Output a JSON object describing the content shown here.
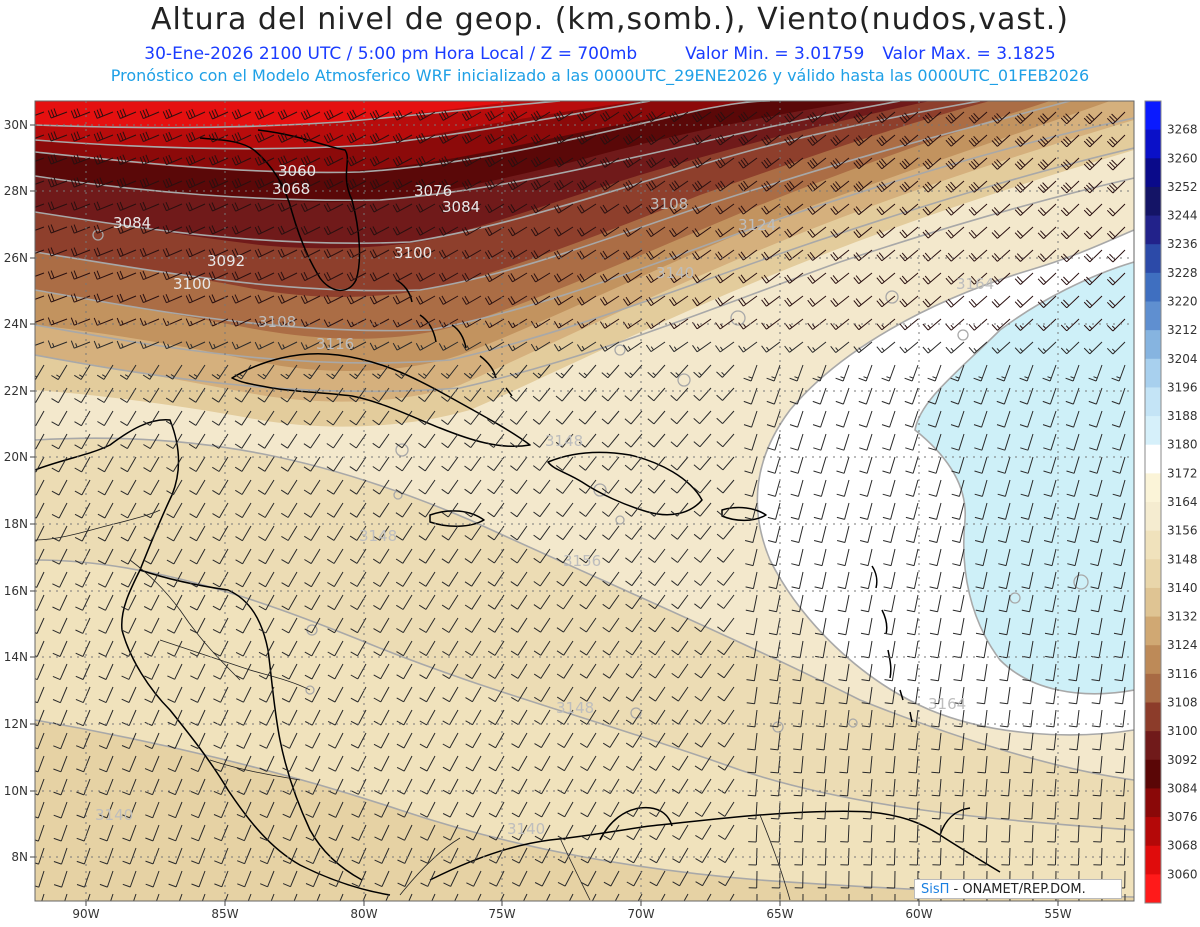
{
  "header": {
    "title": "Altura del nivel de geop. (km,somb.), Viento(nudos,vast.)",
    "date_time": "30-Ene-2026  2100 UTC / 5:00 pm Hora Local / Z = 700mb",
    "min_label": "Valor Min. = 3.01759",
    "max_label": "Valor Max. = 3.1825",
    "model_info": "Pronóstico con el Modelo Atmosferico WRF inicializado a las 0000UTC_29ENE2026 y válido hasta las  0000UTC_01FEB2026"
  },
  "map": {
    "lat_labels": [
      "30N",
      "28N",
      "26N",
      "24N",
      "22N",
      "20N",
      "18N",
      "16N",
      "14N",
      "12N",
      "10N",
      "8N"
    ],
    "lon_labels": [
      "90W",
      "85W",
      "80W",
      "75W",
      "70W",
      "65W",
      "60W",
      "55W"
    ],
    "contour_labels": [
      {
        "text": "3060"
      },
      {
        "text": "3068"
      },
      {
        "text": "3076"
      },
      {
        "text": "3084"
      },
      {
        "text": "3084"
      },
      {
        "text": "3092"
      },
      {
        "text": "3100"
      },
      {
        "text": "3100"
      },
      {
        "text": "3108"
      },
      {
        "text": "3108"
      },
      {
        "text": "3116"
      },
      {
        "text": "3124"
      },
      {
        "text": "3140"
      },
      {
        "text": "3164"
      },
      {
        "text": "3148"
      },
      {
        "text": "3148"
      },
      {
        "text": "3156"
      },
      {
        "text": "3148"
      },
      {
        "text": "3164"
      },
      {
        "text": "3140"
      },
      {
        "text": "3140"
      }
    ]
  },
  "colorbar": {
    "entries": [
      {
        "label": "3268",
        "color": "#0a1aff"
      },
      {
        "label": "3260",
        "color": "#0a10c8"
      },
      {
        "label": "3252",
        "color": "#0a0a8a"
      },
      {
        "label": "3244",
        "color": "#141466"
      },
      {
        "label": "3236",
        "color": "#22228a"
      },
      {
        "label": "3228",
        "color": "#2c4aa8"
      },
      {
        "label": "3220",
        "color": "#3f6fc0"
      },
      {
        "label": "3212",
        "color": "#5f8fd0"
      },
      {
        "label": "3204",
        "color": "#86b4e0"
      },
      {
        "label": "3196",
        "color": "#a8d0ee"
      },
      {
        "label": "3188",
        "color": "#c4e4f6"
      },
      {
        "label": "3180",
        "color": "#d6f0fa"
      },
      {
        "label": "3172",
        "color": "#ffffff"
      },
      {
        "label": "3164",
        "color": "#fbf4d8"
      },
      {
        "label": "3156",
        "color": "#f5ecd0"
      },
      {
        "label": "3148",
        "color": "#f0e2bc"
      },
      {
        "label": "3140",
        "color": "#e9d6aa"
      },
      {
        "label": "3132",
        "color": "#dfc493"
      },
      {
        "label": "3124",
        "color": "#d0a873"
      },
      {
        "label": "3116",
        "color": "#bd8a58"
      },
      {
        "label": "3108",
        "color": "#a86a44"
      },
      {
        "label": "3100",
        "color": "#8c3c2a"
      },
      {
        "label": "3092",
        "color": "#701a1a"
      },
      {
        "label": "3084",
        "color": "#5a0606"
      },
      {
        "label": "3076",
        "color": "#8a0808"
      },
      {
        "label": "3068",
        "color": "#b40808"
      },
      {
        "label": "3060",
        "color": "#e00c0c"
      },
      {
        "label": "",
        "color": "#ff1a1a"
      }
    ]
  },
  "footer": {
    "brand": "SisΠ",
    "org": " - ONAMET/REP.DOM."
  }
}
